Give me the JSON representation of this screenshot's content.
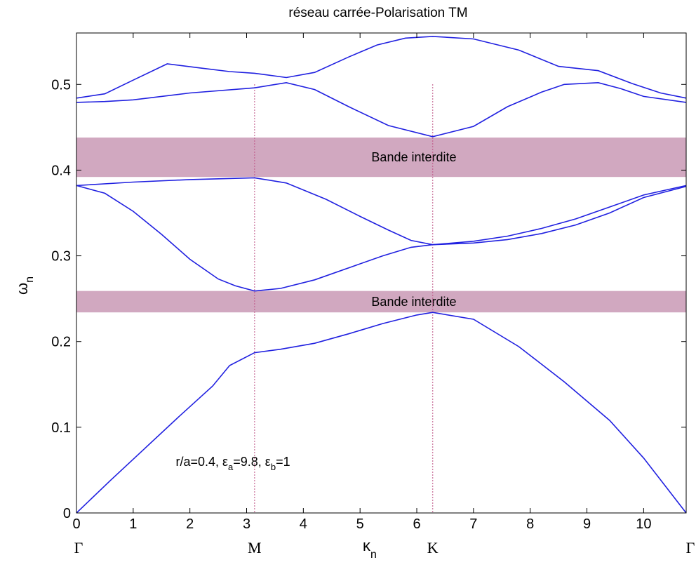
{
  "chart_data": {
    "type": "line",
    "title": "réseau carrée-Polarisation TM",
    "xlabel_main": "κ",
    "xlabel_sub": "n",
    "ylabel_main": "ω",
    "ylabel_sub": "n",
    "xlim": [
      0,
      10.75
    ],
    "ylim": [
      0,
      0.56
    ],
    "x_ticks": [
      0,
      1,
      2,
      3,
      4,
      5,
      6,
      7,
      8,
      9,
      10
    ],
    "y_ticks": [
      0,
      0.1,
      0.2,
      0.3,
      0.4,
      0.5
    ],
    "y_tick_labels": [
      "0",
      "0.1",
      "0.2",
      "0.3",
      "0.4",
      "0.5"
    ],
    "symmetry_points": [
      {
        "label": "Γ",
        "x": 0
      },
      {
        "label": "M",
        "x": 3.14
      },
      {
        "label": "K",
        "x": 6.28
      },
      {
        "label": "Γ",
        "x": 10.75
      }
    ],
    "vertical_markers": [
      3.14,
      6.28
    ],
    "band_gaps": [
      {
        "label": "Bande interdite",
        "ymin": 0.392,
        "ymax": 0.438
      },
      {
        "label": "Bande interdite",
        "ymin": 0.234,
        "ymax": 0.259
      }
    ],
    "annotation": {
      "prefix": "r/a=0.4, ε",
      "sub_a": "a",
      "mid": "=9.8, ε",
      "sub_b": "b",
      "suffix": "=1",
      "x": 1.75,
      "y": 0.055
    },
    "line_color": "#2020e0",
    "gap_color": "#d1a8c0",
    "series": [
      {
        "x": [
          0,
          0.6,
          1.2,
          1.8,
          2.4,
          2.7,
          3.14,
          3.6,
          4.2,
          4.8,
          5.4,
          6.0,
          6.28,
          7.0,
          7.8,
          8.6,
          9.4,
          10.0,
          10.75
        ],
        "y": [
          0,
          0.038,
          0.075,
          0.112,
          0.148,
          0.172,
          0.187,
          0.191,
          0.198,
          0.209,
          0.221,
          0.231,
          0.234,
          0.226,
          0.194,
          0.153,
          0.108,
          0.064,
          0
        ]
      },
      {
        "x": [
          0,
          0.5,
          1.0,
          1.5,
          2.0,
          2.5,
          2.8,
          3.14,
          3.6,
          4.2,
          4.8,
          5.4,
          5.9,
          6.28,
          7.0,
          7.6,
          8.2,
          8.8,
          9.4,
          10.0,
          10.75
        ],
        "y": [
          0.382,
          0.373,
          0.352,
          0.325,
          0.296,
          0.273,
          0.265,
          0.259,
          0.262,
          0.272,
          0.286,
          0.3,
          0.31,
          0.313,
          0.315,
          0.319,
          0.326,
          0.336,
          0.35,
          0.368,
          0.381
        ]
      },
      {
        "x": [
          0,
          1.0,
          2.0,
          3.14,
          3.7,
          4.4,
          5.0,
          5.5,
          5.9,
          6.28,
          7.0,
          7.6,
          8.2,
          8.8,
          9.4,
          10.0,
          10.75
        ],
        "y": [
          0.382,
          0.386,
          0.389,
          0.391,
          0.385,
          0.366,
          0.346,
          0.33,
          0.318,
          0.313,
          0.317,
          0.323,
          0.332,
          0.343,
          0.357,
          0.371,
          0.382
        ]
      },
      {
        "x": [
          0,
          0.5,
          1.0,
          2.0,
          3.14,
          3.7,
          4.2,
          4.8,
          5.5,
          6.28,
          7.0,
          7.6,
          8.2,
          8.6,
          9.2,
          9.6,
          10.0,
          10.75
        ],
        "y": [
          0.479,
          0.48,
          0.482,
          0.49,
          0.496,
          0.502,
          0.494,
          0.474,
          0.452,
          0.439,
          0.451,
          0.474,
          0.491,
          0.5,
          0.502,
          0.495,
          0.486,
          0.479
        ]
      },
      {
        "x": [
          0,
          0.5,
          1.0,
          1.6,
          2.2,
          2.7,
          3.14,
          3.7,
          4.2,
          4.8,
          5.3,
          5.8,
          6.28,
          7.0,
          7.8,
          8.5,
          9.2,
          9.8,
          10.3,
          10.75
        ],
        "y": [
          0.484,
          0.489,
          0.505,
          0.524,
          0.519,
          0.515,
          0.513,
          0.508,
          0.514,
          0.532,
          0.546,
          0.554,
          0.556,
          0.553,
          0.54,
          0.521,
          0.516,
          0.501,
          0.49,
          0.484
        ]
      }
    ]
  }
}
